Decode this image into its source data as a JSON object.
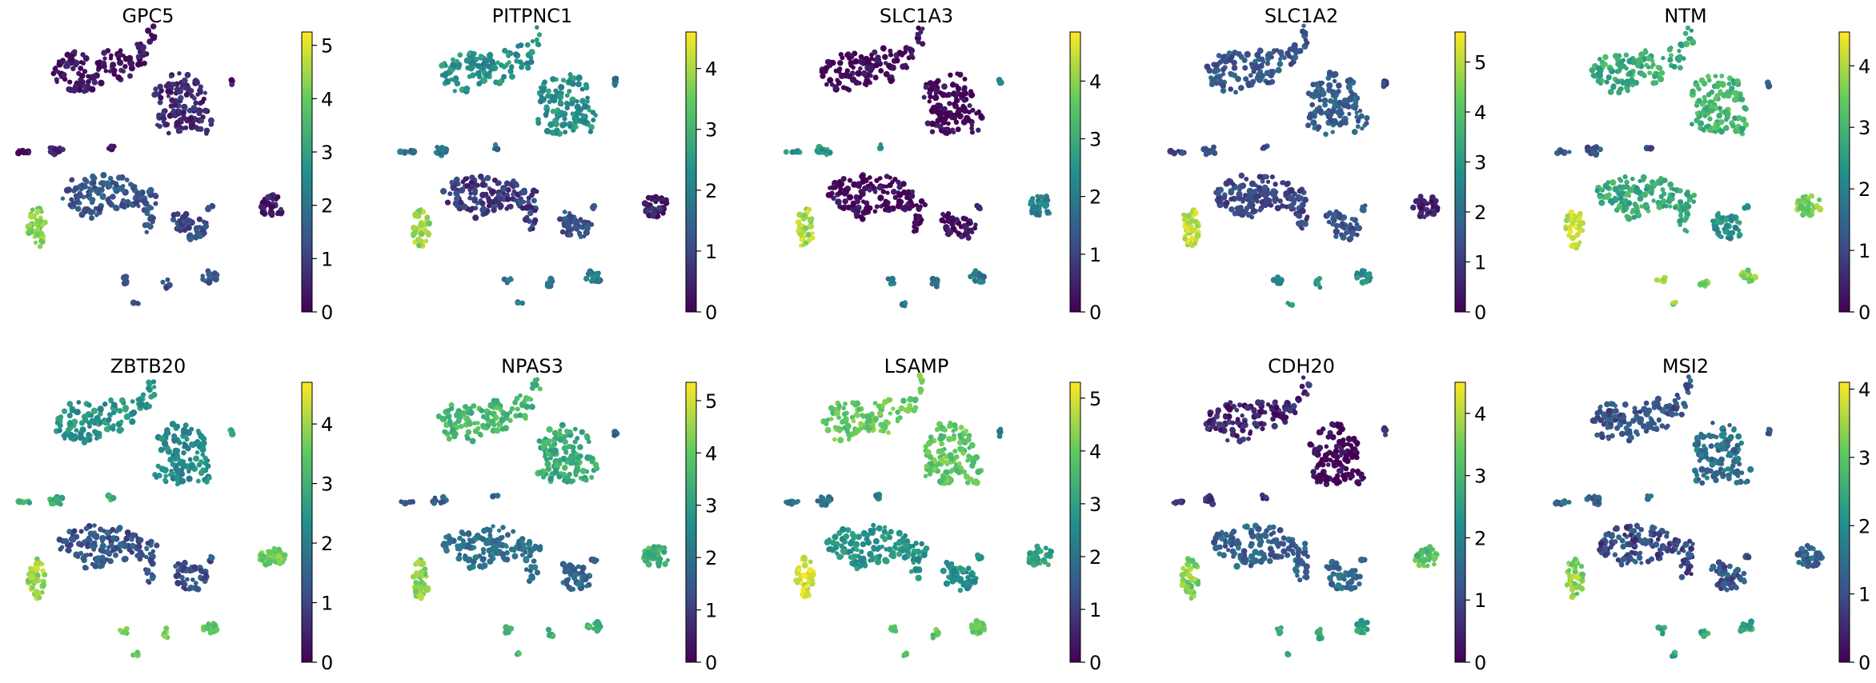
{
  "figure": {
    "colormap": "viridis",
    "colormap_stops": [
      "#440154",
      "#3b528b",
      "#21918c",
      "#5ec962",
      "#fde725"
    ]
  },
  "chart_data": [
    {
      "type": "scatter",
      "title": "GPC5",
      "colorbar": {
        "ylim": [
          0,
          5.25
        ],
        "ticks": [
          0,
          1,
          2,
          3,
          4,
          5
        ]
      },
      "cluster_values": {
        "top_left": 0.3,
        "top_right": 0.6,
        "tiny_left": 0.4,
        "mid_big": 1.4,
        "mid_right": 1.2,
        "right": 0.4,
        "left_bottom": 4.3,
        "bottom_small": 1.3
      }
    },
    {
      "type": "scatter",
      "title": "PITPNC1",
      "colorbar": {
        "ylim": [
          0,
          4.6
        ],
        "ticks": [
          0,
          1,
          2,
          3,
          4
        ]
      },
      "cluster_values": {
        "top_left": 2.3,
        "top_right": 2.3,
        "tiny_left": 1.7,
        "mid_big": 0.8,
        "mid_right": 1.2,
        "right": 0.4,
        "left_bottom": 3.9,
        "bottom_small": 1.8
      }
    },
    {
      "type": "scatter",
      "title": "SLC1A3",
      "colorbar": {
        "ylim": [
          0,
          4.85
        ],
        "ticks": [
          0,
          1,
          2,
          3,
          4
        ]
      },
      "cluster_values": {
        "top_left": 0.1,
        "top_right": 0.1,
        "tiny_left": 2.6,
        "mid_big": 0.1,
        "mid_right": 0.2,
        "right": 2.1,
        "left_bottom": 4.2,
        "bottom_small": 2.0
      }
    },
    {
      "type": "scatter",
      "title": "SLC1A2",
      "colorbar": {
        "ylim": [
          0,
          5.6
        ],
        "ticks": [
          0,
          1,
          2,
          3,
          4,
          5
        ]
      },
      "cluster_values": {
        "top_left": 1.5,
        "top_right": 1.7,
        "tiny_left": 1.2,
        "mid_big": 1.2,
        "mid_right": 1.5,
        "right": 0.5,
        "left_bottom": 5.0,
        "bottom_small": 2.8
      }
    },
    {
      "type": "scatter",
      "title": "NTM",
      "colorbar": {
        "ylim": [
          0,
          4.55
        ],
        "ticks": [
          0,
          1,
          2,
          3,
          4
        ]
      },
      "cluster_values": {
        "top_left": 2.8,
        "top_right": 3.0,
        "tiny_left": 1.2,
        "mid_big": 2.8,
        "mid_right": 2.3,
        "right": 3.6,
        "left_bottom": 4.2,
        "bottom_small": 3.7
      }
    },
    {
      "type": "scatter",
      "title": "ZBTB20",
      "colorbar": {
        "ylim": [
          0,
          4.7
        ],
        "ticks": [
          0,
          1,
          2,
          3,
          4
        ]
      },
      "cluster_values": {
        "top_left": 2.4,
        "top_right": 2.2,
        "tiny_left": 3.0,
        "mid_big": 1.2,
        "mid_right": 1.2,
        "right": 3.7,
        "left_bottom": 4.0,
        "bottom_small": 3.6
      }
    },
    {
      "type": "scatter",
      "title": "NPAS3",
      "colorbar": {
        "ylim": [
          0,
          5.35
        ],
        "ticks": [
          0,
          1,
          2,
          3,
          4,
          5
        ]
      },
      "cluster_values": {
        "top_left": 3.6,
        "top_right": 3.3,
        "tiny_left": 1.6,
        "mid_big": 2.0,
        "mid_right": 1.8,
        "right": 3.4,
        "left_bottom": 4.4,
        "bottom_small": 3.6
      }
    },
    {
      "type": "scatter",
      "title": "LSAMP",
      "colorbar": {
        "ylim": [
          0,
          5.3
        ],
        "ticks": [
          0,
          1,
          2,
          3,
          4,
          5
        ]
      },
      "cluster_values": {
        "top_left": 4.0,
        "top_right": 3.9,
        "tiny_left": 2.0,
        "mid_big": 2.7,
        "mid_right": 2.7,
        "right": 3.0,
        "left_bottom": 5.0,
        "bottom_small": 3.9
      }
    },
    {
      "type": "scatter",
      "title": "CDH20",
      "colorbar": {
        "ylim": [
          0,
          4.5
        ],
        "ticks": [
          0,
          1,
          2,
          3,
          4
        ]
      },
      "cluster_values": {
        "top_left": 0.5,
        "top_right": 0.1,
        "tiny_left": 0.7,
        "mid_big": 1.4,
        "mid_right": 1.6,
        "right": 3.2,
        "left_bottom": 3.6,
        "bottom_small": 2.6
      }
    },
    {
      "type": "scatter",
      "title": "MSI2",
      "colorbar": {
        "ylim": [
          0,
          4.1
        ],
        "ticks": [
          0,
          1,
          2,
          3,
          4
        ]
      },
      "cluster_values": {
        "top_left": 1.1,
        "top_right": 1.5,
        "tiny_left": 1.3,
        "mid_big": 0.9,
        "mid_right": 1.1,
        "right": 1.3,
        "left_bottom": 3.4,
        "bottom_small": 2.4
      }
    }
  ]
}
